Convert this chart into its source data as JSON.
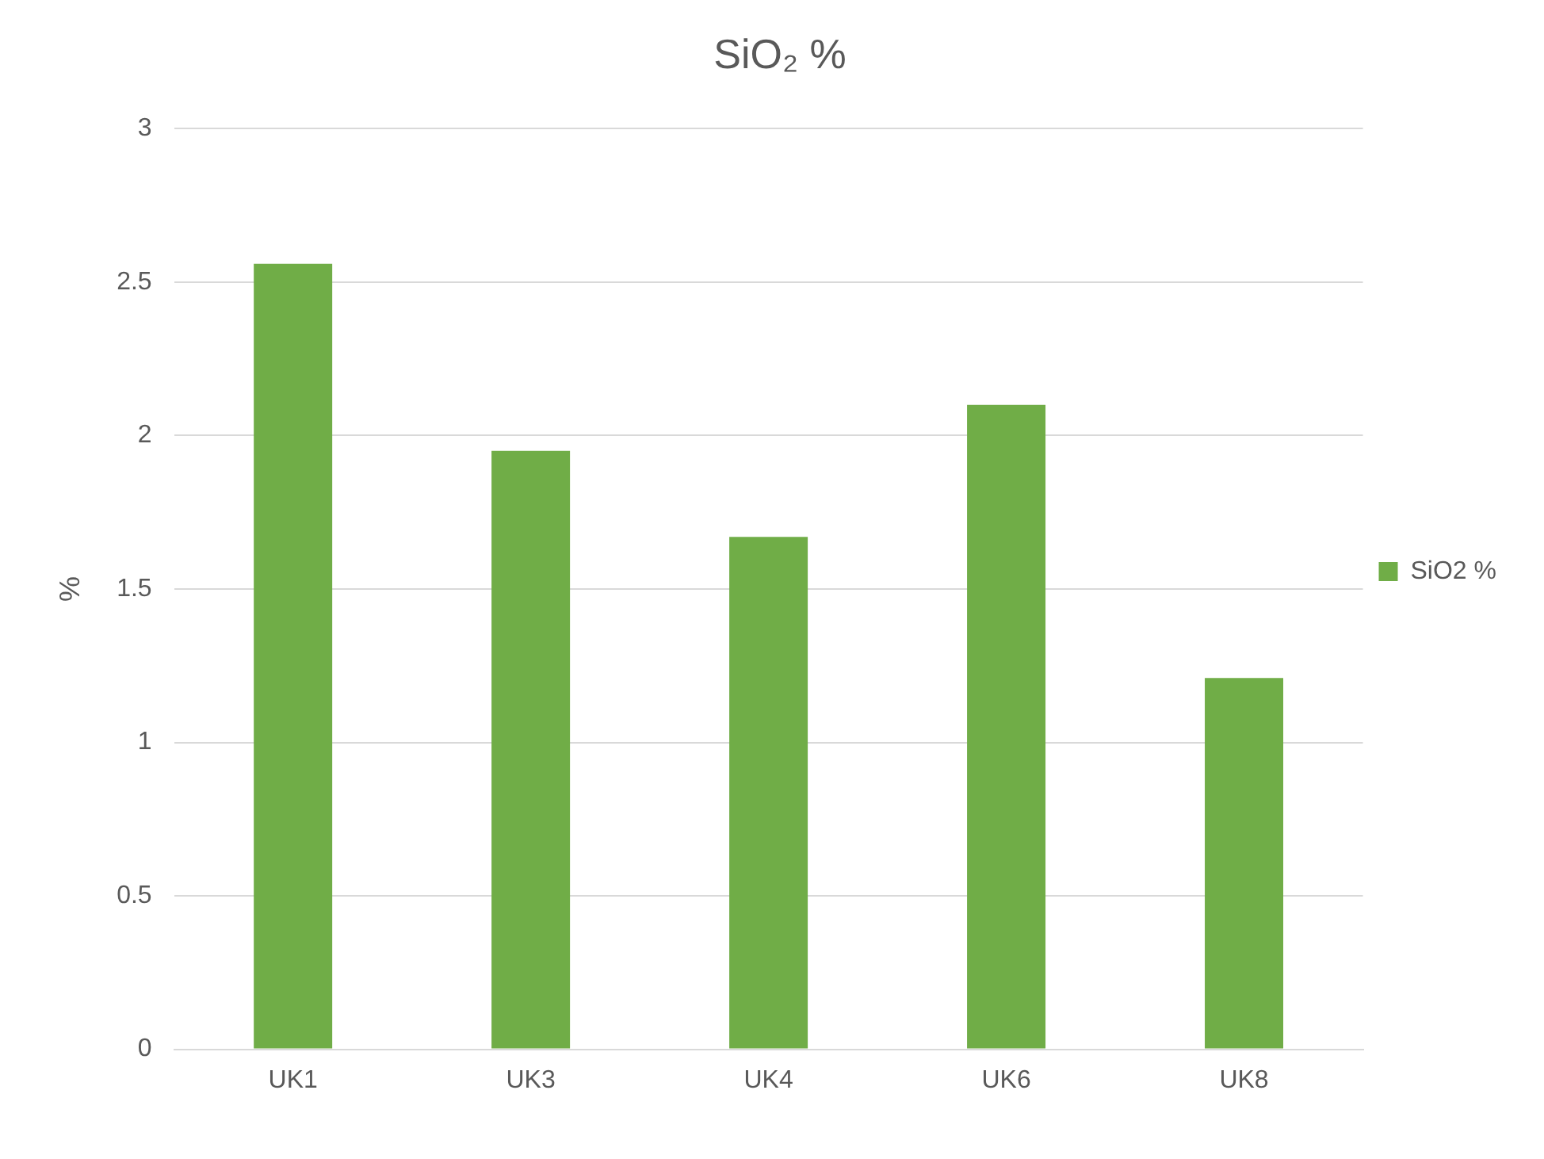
{
  "chart_data": {
    "type": "bar",
    "title": "SiO₂ %",
    "ylabel": "%",
    "categories": [
      "UK1",
      "UK3",
      "UK4",
      "UK6",
      "UK8"
    ],
    "series": [
      {
        "name": "SiO2 %",
        "color": "#70ad47",
        "values": [
          2.56,
          1.95,
          1.67,
          2.1,
          1.21
        ]
      }
    ],
    "ylim": [
      0,
      3
    ],
    "yticks": [
      0,
      0.5,
      1,
      1.5,
      2,
      2.5,
      3
    ],
    "grid": "y",
    "legend": "right"
  }
}
